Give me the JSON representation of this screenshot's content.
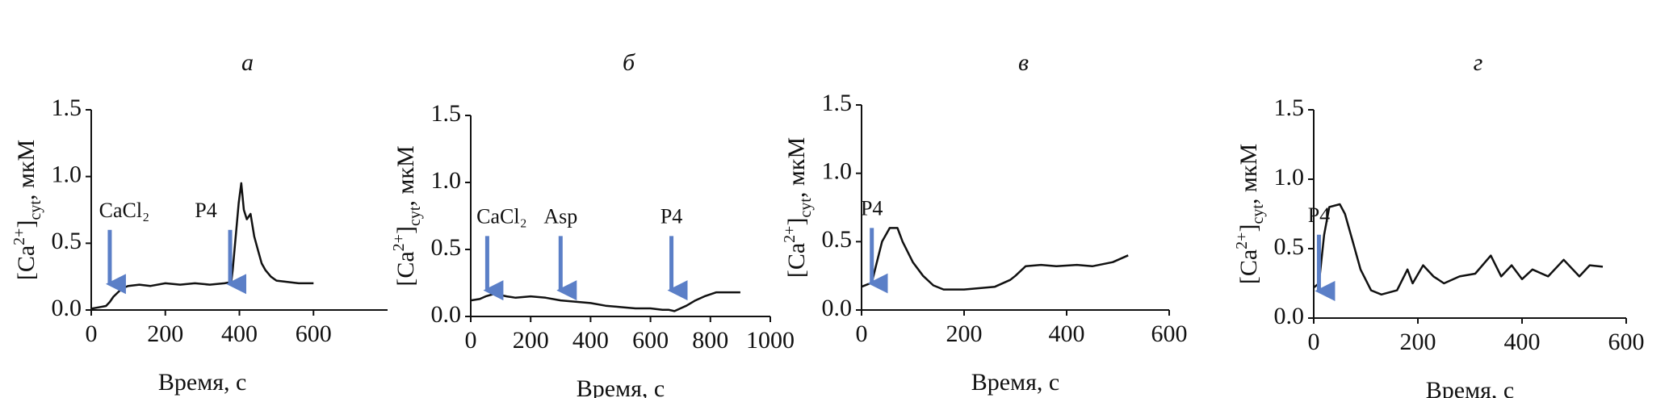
{
  "chart_data": [
    {
      "type": "line",
      "title": "а",
      "xlabel": "Время, с",
      "ylabel": [
        "[Ca",
        "2+",
        "]",
        "cyt",
        ", мкМ"
      ],
      "xlim": [
        0,
        800
      ],
      "xticks": [
        0,
        200,
        400,
        600
      ],
      "ylim": [
        0,
        1.5
      ],
      "yticks": [
        {
          "value": 0,
          "label": "0.0"
        },
        0.5,
        {
          "value": 1,
          "label": "1.0"
        },
        1.5
      ],
      "color": "#111111",
      "arrow_color": "#5b7fc7",
      "annotations": [
        {
          "text": "CaCl₂",
          "x": 50
        },
        {
          "text": "P4",
          "x": 375
        }
      ],
      "x": [
        0,
        20,
        40,
        50,
        60,
        75,
        90,
        100,
        130,
        160,
        200,
        240,
        280,
        320,
        360,
        378,
        382,
        390,
        398,
        405,
        412,
        420,
        430,
        440,
        450,
        460,
        470,
        485,
        500,
        530,
        560,
        600
      ],
      "values": [
        0.01,
        0.02,
        0.03,
        0.06,
        0.1,
        0.14,
        0.17,
        0.18,
        0.19,
        0.18,
        0.2,
        0.19,
        0.2,
        0.19,
        0.2,
        0.21,
        0.3,
        0.55,
        0.8,
        0.95,
        0.75,
        0.68,
        0.72,
        0.55,
        0.45,
        0.35,
        0.3,
        0.25,
        0.22,
        0.21,
        0.2,
        0.2
      ]
    },
    {
      "type": "line",
      "title": "б",
      "xlabel": "Время, с",
      "ylabel": [
        "[Ca",
        "2+",
        "]",
        "cyt",
        ", мкМ"
      ],
      "xlim": [
        0,
        1000
      ],
      "xticks": [
        0,
        200,
        400,
        600,
        800,
        1000
      ],
      "ylim": [
        0,
        1.5
      ],
      "yticks": [
        {
          "value": 0,
          "label": "0.0"
        },
        0.5,
        {
          "value": 1,
          "label": "1.0"
        },
        1.5
      ],
      "color": "#111111",
      "arrow_color": "#5b7fc7",
      "annotations": [
        {
          "text": "CaCl₂",
          "x": 55
        },
        {
          "text": "Asp",
          "x": 300
        },
        {
          "text": "P4",
          "x": 670
        }
      ],
      "x": [
        0,
        30,
        50,
        80,
        120,
        150,
        200,
        250,
        300,
        350,
        400,
        450,
        500,
        550,
        600,
        640,
        660,
        680,
        700,
        720,
        750,
        780,
        820,
        860,
        900
      ],
      "values": [
        0.12,
        0.13,
        0.15,
        0.17,
        0.15,
        0.14,
        0.15,
        0.14,
        0.12,
        0.11,
        0.1,
        0.08,
        0.07,
        0.06,
        0.06,
        0.05,
        0.05,
        0.04,
        0.06,
        0.08,
        0.12,
        0.15,
        0.18,
        0.18,
        0.18
      ]
    },
    {
      "type": "line",
      "title": "в",
      "xlabel": "Время, с",
      "ylabel": [
        "[Ca",
        "2+",
        "]",
        "cyt",
        ", мкМ"
      ],
      "xlim": [
        0,
        600
      ],
      "xticks": [
        0,
        200,
        400,
        600
      ],
      "ylim": [
        0,
        1.5
      ],
      "yticks": [
        {
          "value": 0,
          "label": "0.0"
        },
        0.5,
        {
          "value": 1,
          "label": "1.0"
        },
        1.5
      ],
      "color": "#111111",
      "arrow_color": "#5b7fc7",
      "annotations": [
        {
          "text": "P4",
          "x": 20
        }
      ],
      "x": [
        0,
        20,
        30,
        40,
        55,
        70,
        80,
        100,
        120,
        140,
        160,
        200,
        260,
        290,
        300,
        320,
        350,
        380,
        420,
        450,
        490,
        520
      ],
      "values": [
        0.17,
        0.2,
        0.35,
        0.5,
        0.6,
        0.6,
        0.5,
        0.35,
        0.25,
        0.18,
        0.15,
        0.15,
        0.17,
        0.22,
        0.25,
        0.32,
        0.33,
        0.32,
        0.33,
        0.32,
        0.35,
        0.4
      ]
    },
    {
      "type": "line",
      "title": "г",
      "xlabel": "Время, с",
      "ylabel": [
        "[Ca",
        "2+",
        "]",
        "cyt",
        ", мкМ"
      ],
      "xlim": [
        0,
        600
      ],
      "xticks": [
        0,
        200,
        400,
        600
      ],
      "ylim": [
        0,
        1.5
      ],
      "yticks": [
        {
          "value": 0,
          "label": "0.0"
        },
        0.5,
        {
          "value": 1,
          "label": "1.0"
        },
        1.5
      ],
      "color": "#111111",
      "arrow_color": "#5b7fc7",
      "annotations": [
        {
          "text": "P4",
          "x": 10
        }
      ],
      "x": [
        0,
        10,
        20,
        30,
        50,
        60,
        75,
        90,
        110,
        130,
        160,
        180,
        190,
        210,
        230,
        250,
        280,
        310,
        340,
        360,
        380,
        400,
        420,
        450,
        480,
        510,
        530,
        555
      ],
      "values": [
        0.22,
        0.25,
        0.6,
        0.8,
        0.82,
        0.75,
        0.55,
        0.35,
        0.2,
        0.17,
        0.2,
        0.35,
        0.25,
        0.38,
        0.3,
        0.25,
        0.3,
        0.32,
        0.45,
        0.3,
        0.38,
        0.28,
        0.35,
        0.3,
        0.42,
        0.3,
        0.38,
        0.37
      ]
    }
  ]
}
